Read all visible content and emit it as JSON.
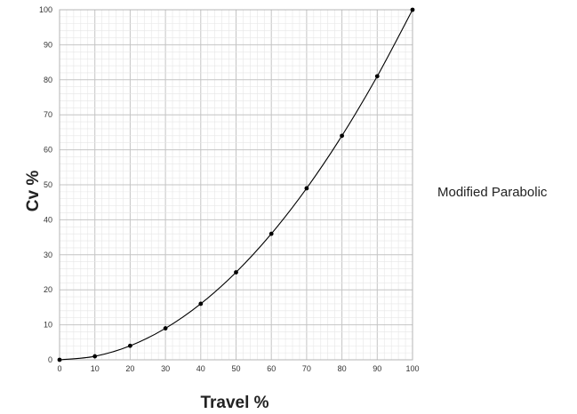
{
  "chart_data": {
    "type": "line",
    "xlabel": "Travel %",
    "ylabel": "Cv %",
    "xlim": [
      0,
      100
    ],
    "ylim": [
      0,
      100
    ],
    "x_ticks": [
      0,
      10,
      20,
      30,
      40,
      50,
      60,
      70,
      80,
      90,
      100
    ],
    "y_ticks": [
      0,
      10,
      20,
      30,
      40,
      50,
      60,
      70,
      80,
      90,
      100
    ],
    "grid": true,
    "legend_position": "right",
    "series": [
      {
        "name": "Modified Parabolic",
        "color": "#000000",
        "markers": true,
        "x": [
          0,
          10,
          20,
          30,
          40,
          50,
          60,
          70,
          80,
          90,
          100
        ],
        "y": [
          0,
          1,
          4,
          9,
          16,
          25,
          36,
          49,
          64,
          81,
          100
        ]
      }
    ]
  }
}
